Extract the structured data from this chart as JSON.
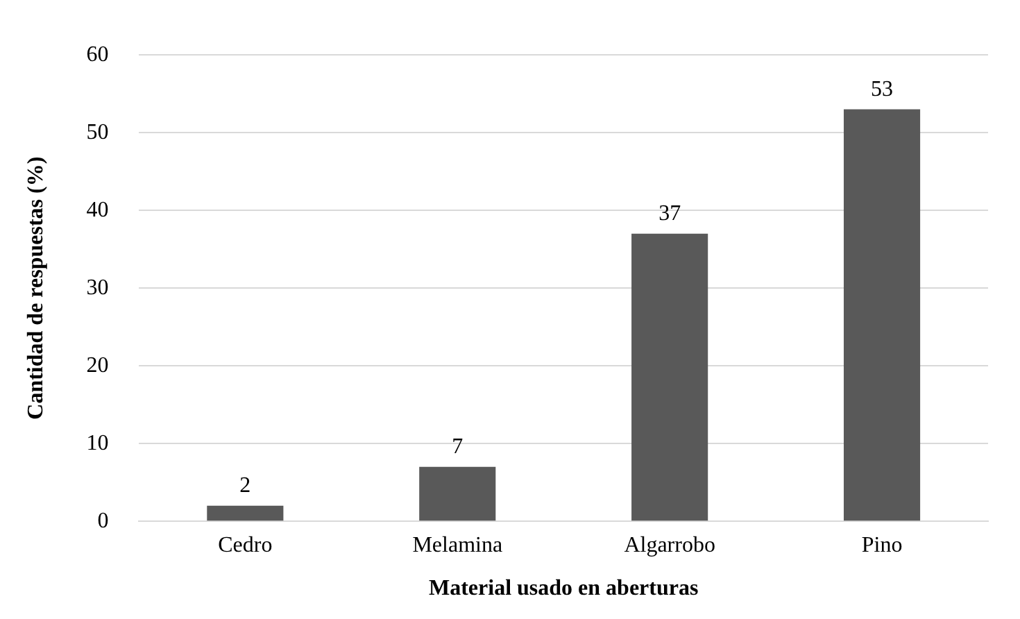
{
  "chart_data": {
    "type": "bar",
    "xlabel": "Material usado en aberturas",
    "ylabel": "Cantidad de respuestas (%)",
    "categories": [
      "Cedro",
      "Melamina",
      "Algarrobo",
      "Pino"
    ],
    "values": [
      2,
      7,
      37,
      53
    ],
    "color": "#595959",
    "ylim": [
      0,
      60
    ],
    "yticks": [
      0,
      10,
      20,
      30,
      40,
      50,
      60
    ],
    "grid": "y",
    "data_labels": true,
    "legend": false
  }
}
